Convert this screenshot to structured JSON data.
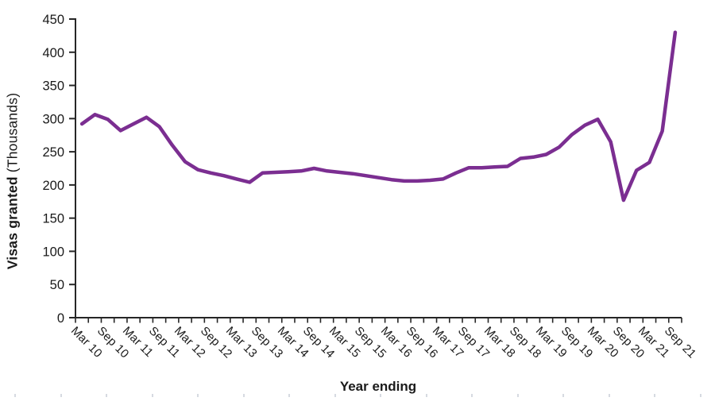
{
  "chart_data": {
    "type": "line",
    "title": "",
    "xlabel": "Year ending",
    "ylabel_bold": "Visas granted",
    "ylabel_regular": "(Thousands)",
    "ylim": [
      0,
      450
    ],
    "ytick_step": 50,
    "yticks": [
      0,
      50,
      100,
      150,
      200,
      250,
      300,
      350,
      400,
      450
    ],
    "grid": false,
    "legend": "none",
    "line_color": "#7b2e91",
    "axis_color": "#262626",
    "x": [
      "Mar 10",
      "Jun 10",
      "Sep 10",
      "Dec 10",
      "Mar 11",
      "Jun 11",
      "Sep 11",
      "Dec 11",
      "Mar 12",
      "Jun 12",
      "Sep 12",
      "Dec 12",
      "Mar 13",
      "Jun 13",
      "Sep 13",
      "Dec 13",
      "Mar 14",
      "Jun 14",
      "Sep 14",
      "Dec 14",
      "Mar 15",
      "Jun 15",
      "Sep 15",
      "Dec 15",
      "Mar 16",
      "Jun 16",
      "Sep 16",
      "Dec 16",
      "Mar 17",
      "Jun 17",
      "Sep 17",
      "Dec 17",
      "Mar 18",
      "Jun 18",
      "Sep 18",
      "Dec 18",
      "Mar 19",
      "Jun 19",
      "Sep 19",
      "Dec 19",
      "Mar 20",
      "Jun 20",
      "Sep 20",
      "Dec 20",
      "Mar 21",
      "Jun 21",
      "Sep 21"
    ],
    "x_tick_labels": [
      "Mar 10",
      "Sep 10",
      "Mar 11",
      "Sep 11",
      "Mar 12",
      "Sep 12",
      "Mar 13",
      "Sep 13",
      "Mar 14",
      "Sep 14",
      "Mar 15",
      "Sep 15",
      "Mar 16",
      "Sep 16",
      "Mar 17",
      "Sep 17",
      "Mar 18",
      "Sep 18",
      "Mar 19",
      "Sep 19",
      "Mar 20",
      "Sep 20",
      "Mar 21",
      "Sep 21"
    ],
    "series": [
      {
        "name": "Visas granted (Thousands)",
        "values": [
          292,
          306,
          299,
          282,
          292,
          302,
          288,
          260,
          235,
          223,
          218,
          214,
          209,
          204,
          218,
          219,
          220,
          221,
          225,
          221,
          219,
          217,
          214,
          211,
          208,
          206,
          206,
          207,
          209,
          218,
          226,
          226,
          227,
          228,
          240,
          242,
          246,
          257,
          276,
          290,
          299,
          265,
          177,
          222,
          234,
          281,
          430
        ]
      }
    ]
  }
}
